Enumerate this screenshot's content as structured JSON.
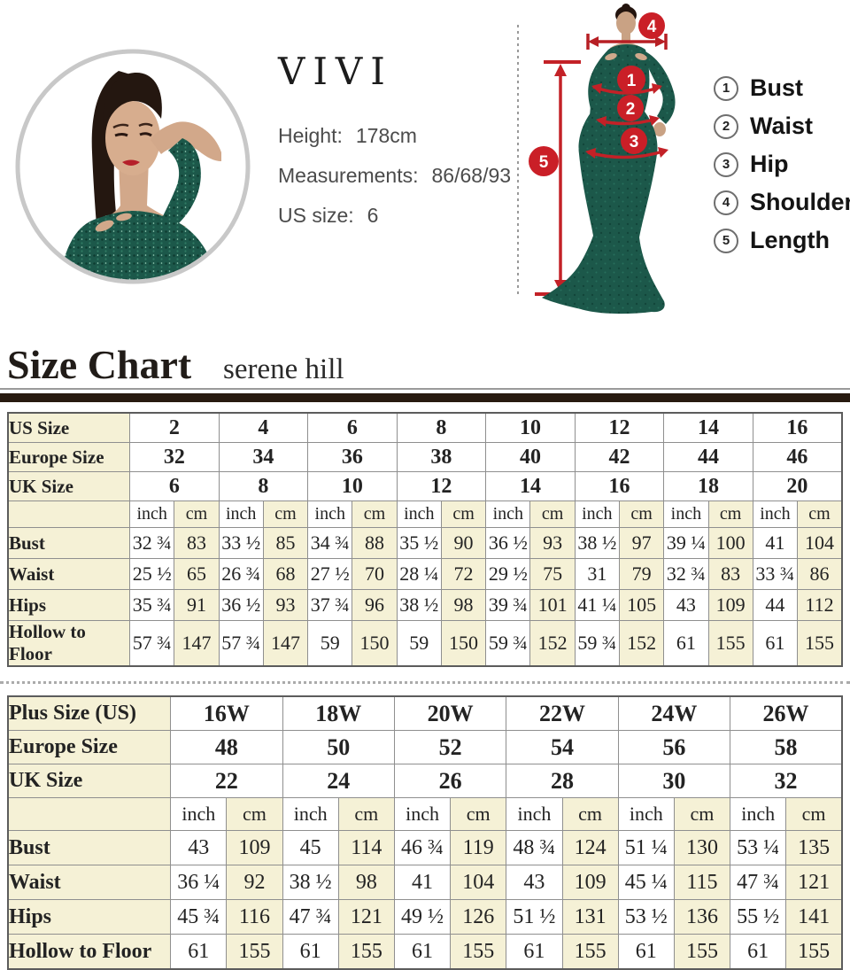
{
  "brand_panel": {
    "brand": "VIVI",
    "rows": [
      {
        "label": "Height:",
        "value": "178cm"
      },
      {
        "label": "Measurements:",
        "value": "86/68/93"
      },
      {
        "label": "US size:",
        "value": "6"
      }
    ]
  },
  "diagram": {
    "callouts": [
      "1",
      "2",
      "3",
      "4",
      "5"
    ],
    "legend": [
      {
        "num": "1",
        "label": "Bust"
      },
      {
        "num": "2",
        "label": "Waist"
      },
      {
        "num": "3",
        "label": "Hip"
      },
      {
        "num": "4",
        "label": "Shoulder"
      },
      {
        "num": "5",
        "label": "Length"
      }
    ]
  },
  "heading": {
    "title": "Size Chart",
    "subtitle": "serene hill"
  },
  "colors": {
    "accent_red": "#c32127",
    "dress_green": "#1c584a",
    "table_cream": "#f5f1d6",
    "divider_dark": "#281a10"
  },
  "chart_data": [
    {
      "type": "table",
      "label_col_width": "14.6%",
      "unit_labels": [
        "inch",
        "cm"
      ],
      "header_rows": [
        {
          "label": "US Size",
          "values": [
            "2",
            "4",
            "6",
            "8",
            "10",
            "12",
            "14",
            "16"
          ]
        },
        {
          "label": "Europe Size",
          "values": [
            "32",
            "34",
            "36",
            "38",
            "40",
            "42",
            "44",
            "46"
          ]
        },
        {
          "label": "UK Size",
          "values": [
            "6",
            "8",
            "10",
            "12",
            "14",
            "16",
            "18",
            "20"
          ]
        }
      ],
      "rows": [
        {
          "label": "Bust",
          "inch": [
            "32 ¾",
            "33 ½",
            "34 ¾",
            "35 ½",
            "36 ½",
            "38 ½",
            "39 ¼",
            "41"
          ],
          "cm": [
            "83",
            "85",
            "88",
            "90",
            "93",
            "97",
            "100",
            "104"
          ]
        },
        {
          "label": "Waist",
          "inch": [
            "25 ½",
            "26 ¾",
            "27 ½",
            "28 ¼",
            "29 ½",
            "31",
            "32 ¾",
            "33 ¾"
          ],
          "cm": [
            "65",
            "68",
            "70",
            "72",
            "75",
            "79",
            "83",
            "86"
          ]
        },
        {
          "label": "Hips",
          "inch": [
            "35 ¾",
            "36 ½",
            "37 ¾",
            "38 ½",
            "39 ¾",
            "41 ¼",
            "43",
            "44"
          ],
          "cm": [
            "91",
            "93",
            "96",
            "98",
            "101",
            "105",
            "109",
            "112"
          ]
        },
        {
          "label": "Hollow to Floor",
          "inch": [
            "57 ¾",
            "57 ¾",
            "59",
            "59",
            "59 ¾",
            "59 ¾",
            "61",
            "61"
          ],
          "cm": [
            "147",
            "147",
            "150",
            "150",
            "152",
            "152",
            "155",
            "155"
          ]
        }
      ]
    },
    {
      "type": "table",
      "label_col_width": "19.5%",
      "unit_labels": [
        "inch",
        "cm"
      ],
      "header_rows": [
        {
          "label": "Plus Size (US)",
          "values": [
            "16W",
            "18W",
            "20W",
            "22W",
            "24W",
            "26W"
          ]
        },
        {
          "label": "Europe Size",
          "values": [
            "48",
            "50",
            "52",
            "54",
            "56",
            "58"
          ]
        },
        {
          "label": "UK Size",
          "values": [
            "22",
            "24",
            "26",
            "28",
            "30",
            "32"
          ]
        }
      ],
      "rows": [
        {
          "label": "Bust",
          "inch": [
            "43",
            "45",
            "46 ¾",
            "48 ¾",
            "51 ¼",
            "53 ¼"
          ],
          "cm": [
            "109",
            "114",
            "119",
            "124",
            "130",
            "135"
          ]
        },
        {
          "label": "Waist",
          "inch": [
            "36 ¼",
            "38 ½",
            "41",
            "43",
            "45 ¼",
            "47 ¾"
          ],
          "cm": [
            "92",
            "98",
            "104",
            "109",
            "115",
            "121"
          ]
        },
        {
          "label": "Hips",
          "inch": [
            "45 ¾",
            "47 ¾",
            "49 ½",
            "51 ½",
            "53 ½",
            "55 ½"
          ],
          "cm": [
            "116",
            "121",
            "126",
            "131",
            "136",
            "141"
          ]
        },
        {
          "label": "Hollow to Floor",
          "inch": [
            "61",
            "61",
            "61",
            "61",
            "61",
            "61"
          ],
          "cm": [
            "155",
            "155",
            "155",
            "155",
            "155",
            "155"
          ]
        }
      ]
    }
  ]
}
